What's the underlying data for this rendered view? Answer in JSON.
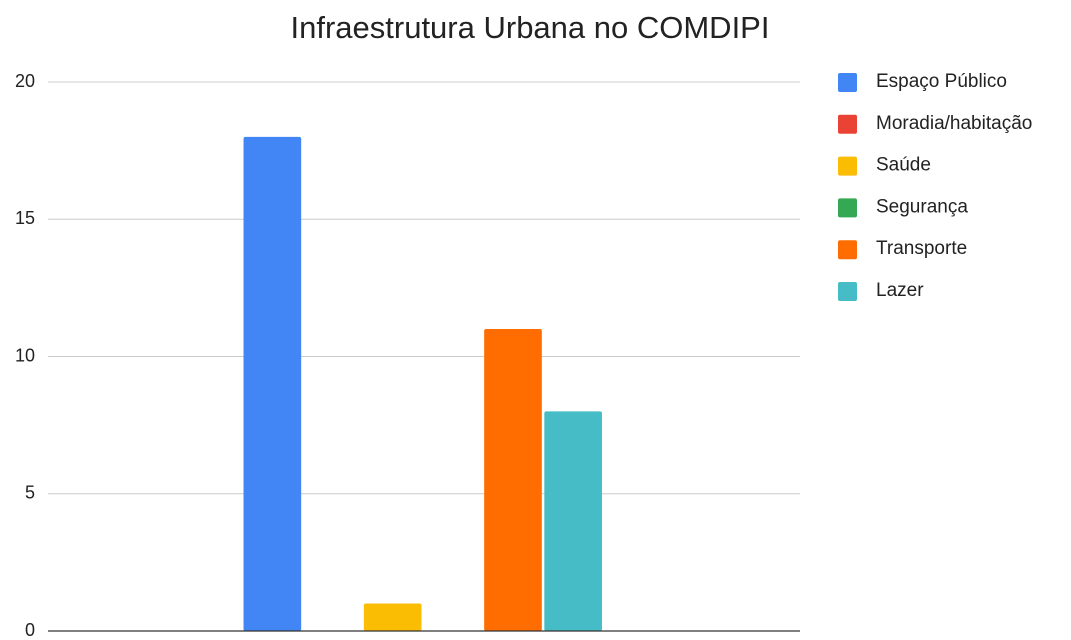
{
  "chart_data": {
    "type": "bar",
    "title": "Infraestrutura Urbana no COMDIPI",
    "categories": [
      null
    ],
    "series": [
      {
        "name": "Espaço Público",
        "color": "#4285f4",
        "values": [
          18
        ]
      },
      {
        "name": "Moradia/habitação",
        "color": "#ea4335",
        "values": [
          0
        ]
      },
      {
        "name": "Saúde",
        "color": "#fbbc04",
        "values": [
          1
        ]
      },
      {
        "name": "Segurança",
        "color": "#34a853",
        "values": [
          0
        ]
      },
      {
        "name": "Transporte",
        "color": "#ff6d01",
        "values": [
          11
        ]
      },
      {
        "name": "Lazer",
        "color": "#46bdc6",
        "values": [
          8
        ]
      }
    ],
    "ylim": [
      0,
      20
    ],
    "yticks": [
      0,
      5,
      10,
      15,
      20
    ],
    "grid": true,
    "legend": "right"
  }
}
